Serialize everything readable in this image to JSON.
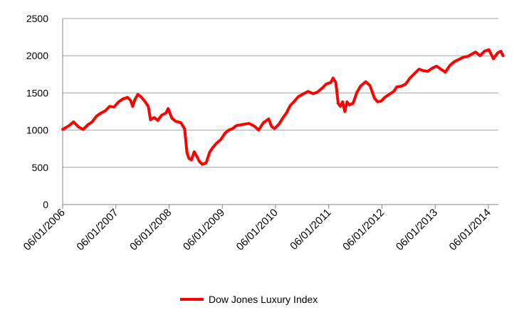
{
  "chart_data": {
    "type": "line",
    "title": "",
    "xlabel": "",
    "ylabel": "",
    "ylim": [
      0,
      2500
    ],
    "yticks": [
      "0",
      "500",
      "1000",
      "1500",
      "2000",
      "2500"
    ],
    "xticks": [
      "06/01/2006",
      "06/01/2007",
      "06/01/2008",
      "06/01/2009",
      "06/01/2010",
      "06/01/2011",
      "06/01/2012",
      "06/01/2013",
      "06/01/2014"
    ],
    "xlim": [
      "2006-06-01",
      "2014-09-15"
    ],
    "grid": "horizontal",
    "legend": "bottom",
    "series": [
      {
        "name": "Dow Jones Luxury Index",
        "color": "#ff0000",
        "x": [
          "2006-06-01",
          "2006-07-15",
          "2006-08-15",
          "2006-09-20",
          "2006-10-20",
          "2006-11-20",
          "2006-12-20",
          "2007-01-20",
          "2007-02-20",
          "2007-03-20",
          "2007-04-20",
          "2007-05-20",
          "2007-06-20",
          "2007-07-20",
          "2007-08-20",
          "2007-09-10",
          "2007-09-25",
          "2007-10-10",
          "2007-10-30",
          "2007-11-20",
          "2007-12-20",
          "2008-01-10",
          "2008-01-25",
          "2008-02-20",
          "2008-03-15",
          "2008-04-10",
          "2008-05-10",
          "2008-05-25",
          "2008-06-20",
          "2008-07-15",
          "2008-08-20",
          "2008-09-15",
          "2008-10-01",
          "2008-10-15",
          "2008-11-01",
          "2008-11-20",
          "2008-12-10",
          "2008-12-25",
          "2009-01-15",
          "2009-02-10",
          "2009-03-05",
          "2009-03-25",
          "2009-04-20",
          "2009-05-20",
          "2009-06-20",
          "2009-07-15",
          "2009-08-10",
          "2009-09-05",
          "2009-10-01",
          "2009-11-01",
          "2009-12-01",
          "2010-01-10",
          "2010-02-05",
          "2010-03-10",
          "2010-04-15",
          "2010-05-05",
          "2010-05-25",
          "2010-06-25",
          "2010-07-20",
          "2010-08-15",
          "2010-09-10",
          "2010-10-05",
          "2010-11-05",
          "2010-12-01",
          "2011-01-10",
          "2011-02-15",
          "2011-03-15",
          "2011-04-15",
          "2011-05-15",
          "2011-06-15",
          "2011-07-01",
          "2011-07-20",
          "2011-08-05",
          "2011-08-20",
          "2011-09-05",
          "2011-09-20",
          "2011-10-05",
          "2011-10-20",
          "2011-11-15",
          "2011-12-10",
          "2012-01-05",
          "2012-02-10",
          "2012-03-10",
          "2012-04-10",
          "2012-05-01",
          "2012-05-25",
          "2012-06-20",
          "2012-07-20",
          "2012-08-20",
          "2012-09-10",
          "2012-10-10",
          "2012-11-10",
          "2012-12-10",
          "2013-01-10",
          "2013-02-10",
          "2013-03-10",
          "2013-04-10",
          "2013-05-10",
          "2013-06-10",
          "2013-07-10",
          "2013-08-10",
          "2013-09-10",
          "2013-10-10",
          "2013-11-10",
          "2013-12-10",
          "2014-01-10",
          "2014-02-05",
          "2014-03-05",
          "2014-04-05",
          "2014-05-05",
          "2014-06-05",
          "2014-07-05",
          "2014-08-05",
          "2014-08-25",
          "2014-09-10"
        ],
        "values": [
          1010,
          1060,
          1110,
          1040,
          1010,
          1070,
          1110,
          1190,
          1230,
          1260,
          1320,
          1310,
          1380,
          1420,
          1440,
          1400,
          1320,
          1410,
          1480,
          1450,
          1380,
          1320,
          1140,
          1170,
          1130,
          1200,
          1230,
          1290,
          1160,
          1120,
          1100,
          1020,
          700,
          620,
          600,
          710,
          640,
          580,
          540,
          560,
          700,
          760,
          820,
          870,
          960,
          1000,
          1020,
          1060,
          1070,
          1080,
          1090,
          1050,
          1000,
          1100,
          1150,
          1050,
          1020,
          1080,
          1160,
          1230,
          1330,
          1380,
          1450,
          1480,
          1520,
          1490,
          1510,
          1560,
          1620,
          1640,
          1700,
          1640,
          1360,
          1320,
          1380,
          1250,
          1380,
          1340,
          1360,
          1500,
          1590,
          1650,
          1600,
          1430,
          1380,
          1390,
          1440,
          1480,
          1520,
          1580,
          1590,
          1620,
          1700,
          1760,
          1820,
          1800,
          1790,
          1830,
          1860,
          1820,
          1780,
          1870,
          1920,
          1950,
          1980,
          1990,
          2020,
          2050,
          2000,
          2060,
          2080,
          1960,
          2040,
          2060,
          2000
        ]
      }
    ]
  }
}
